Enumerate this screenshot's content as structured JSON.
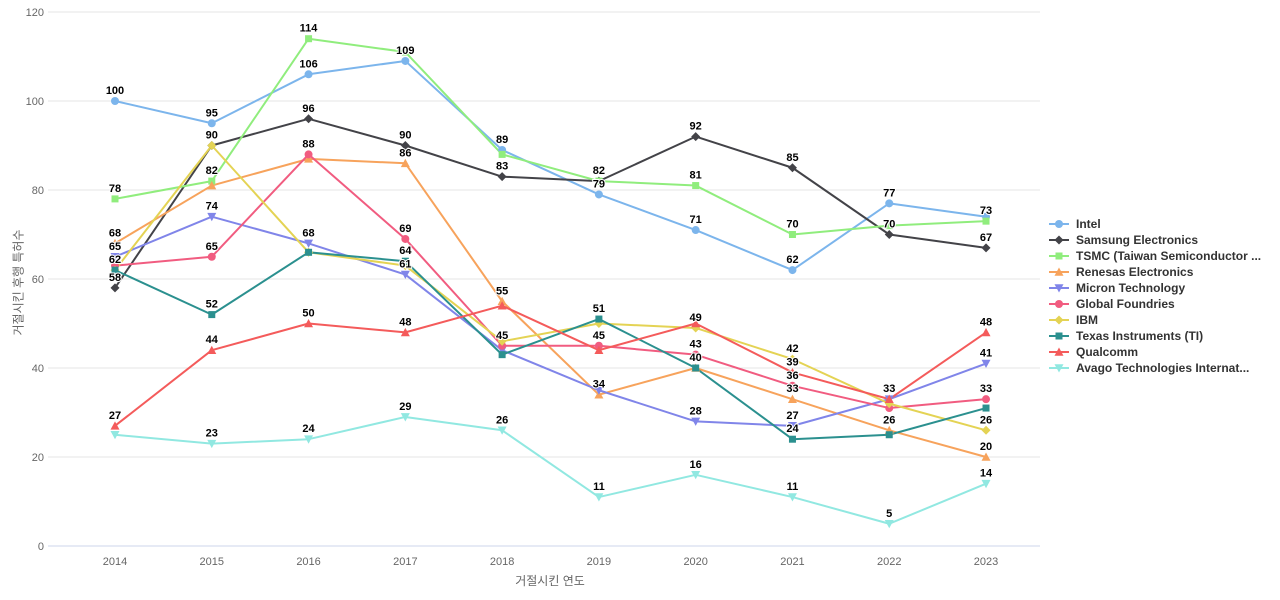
{
  "chart_data": {
    "type": "line",
    "title": "",
    "xlabel": "거절시킨 연도",
    "ylabel": "거절시킨 후행 특허수",
    "categories": [
      "2014",
      "2015",
      "2016",
      "2017",
      "2018",
      "2019",
      "2020",
      "2021",
      "2022",
      "2023"
    ],
    "yticks": [
      0,
      20,
      40,
      60,
      80,
      100,
      120
    ],
    "ylim": [
      0,
      120
    ],
    "grid": "horizontal",
    "legend_position": "right",
    "series": [
      {
        "name": "Intel",
        "color": "#7cb5ec",
        "marker": "circle",
        "values": [
          100,
          95,
          106,
          109,
          89,
          79,
          71,
          62,
          77,
          74
        ],
        "labeled": [
          1,
          1,
          1,
          1,
          1,
          1,
          1,
          1,
          1,
          0
        ]
      },
      {
        "name": "Samsung Electronics",
        "color": "#434348",
        "marker": "diamond",
        "values": [
          58,
          90,
          96,
          90,
          83,
          82,
          92,
          85,
          70,
          67
        ],
        "labeled": [
          1,
          1,
          1,
          1,
          1,
          0,
          1,
          1,
          1,
          1
        ]
      },
      {
        "name": "TSMC (Taiwan Semiconductor ...",
        "color": "#90ed7d",
        "marker": "square",
        "values": [
          78,
          82,
          114,
          111,
          88,
          82,
          81,
          70,
          72,
          73
        ],
        "labeled": [
          1,
          1,
          1,
          0,
          0,
          1,
          1,
          1,
          0,
          1
        ]
      },
      {
        "name": "Renesas Electronics",
        "color": "#f7a35c",
        "marker": "triangle",
        "values": [
          68,
          81,
          87,
          86,
          55,
          34,
          40,
          33,
          26,
          20
        ],
        "labeled": [
          1,
          0,
          0,
          1,
          1,
          1,
          0,
          1,
          1,
          1
        ]
      },
      {
        "name": "Micron Technology",
        "color": "#8085e9",
        "marker": "triangle-down",
        "values": [
          65,
          74,
          68,
          61,
          44,
          35,
          28,
          27,
          33,
          41
        ],
        "labeled": [
          1,
          1,
          1,
          1,
          0,
          0,
          1,
          1,
          0,
          1
        ]
      },
      {
        "name": "Global Foundries",
        "color": "#f15c80",
        "marker": "circle",
        "values": [
          63,
          65,
          88,
          69,
          45,
          45,
          43,
          36,
          31,
          33
        ],
        "labeled": [
          0,
          1,
          1,
          1,
          1,
          1,
          1,
          1,
          0,
          1
        ]
      },
      {
        "name": "IBM",
        "color": "#e4d354",
        "marker": "diamond",
        "values": [
          62,
          90,
          66,
          63,
          46,
          50,
          49,
          42,
          32,
          26
        ],
        "labeled": [
          0,
          0,
          0,
          0,
          0,
          0,
          1,
          1,
          0,
          1
        ]
      },
      {
        "name": "Texas Instruments (TI)",
        "color": "#2b908f",
        "marker": "square",
        "values": [
          62,
          52,
          66,
          64,
          43,
          51,
          40,
          24,
          25,
          31
        ],
        "labeled": [
          1,
          1,
          0,
          1,
          0,
          1,
          1,
          1,
          0,
          0
        ]
      },
      {
        "name": "Qualcomm",
        "color": "#f45b5b",
        "marker": "triangle",
        "values": [
          27,
          44,
          50,
          48,
          54,
          44,
          50,
          39,
          33,
          48
        ],
        "labeled": [
          1,
          1,
          1,
          1,
          0,
          0,
          0,
          1,
          1,
          1
        ]
      },
      {
        "name": "Avago Technologies Internat...",
        "color": "#91e8e1",
        "marker": "triangle-down",
        "values": [
          25,
          23,
          24,
          29,
          26,
          11,
          16,
          11,
          5,
          14
        ],
        "labeled": [
          0,
          1,
          1,
          1,
          1,
          1,
          1,
          1,
          1,
          1
        ]
      }
    ]
  },
  "colors": {
    "background": "#ffffff",
    "grid": "#e6e6e6",
    "axis_text": "#666666",
    "data_label_text": "#000000",
    "legend_text": "#333333"
  }
}
